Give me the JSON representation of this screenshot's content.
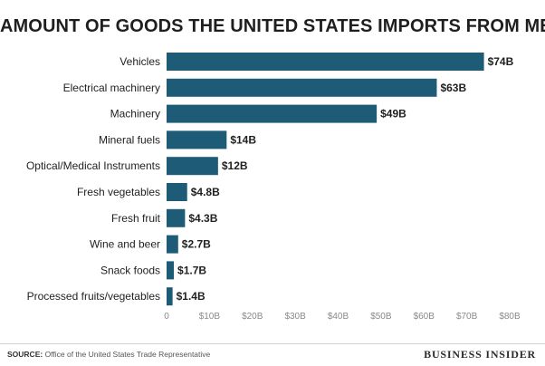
{
  "chart_data": {
    "type": "bar",
    "orientation": "horizontal",
    "title": "AMOUNT OF GOODS THE UNITED STATES IMPORTS FROM MEXICO",
    "xlabel": "",
    "ylabel": "",
    "xlim": [
      0,
      80
    ],
    "ticks": [
      0,
      10,
      20,
      30,
      40,
      50,
      60,
      70,
      80
    ],
    "tick_labels": [
      "0",
      "$10B",
      "$20B",
      "$30B",
      "$40B",
      "$50B",
      "$60B",
      "$70B",
      "$80B"
    ],
    "categories": [
      "Vehicles",
      "Electrical machinery",
      "Machinery",
      "Mineral fuels",
      "Optical/Medical Instruments",
      "Fresh vegetables",
      "Fresh fruit",
      "Wine and beer",
      "Snack foods",
      "Processed fruits/vegetables"
    ],
    "values": [
      74,
      63,
      49,
      14,
      12,
      4.8,
      4.3,
      2.7,
      1.7,
      1.4
    ],
    "value_labels": [
      "$74B",
      "$63B",
      "$49B",
      "$14B",
      "$12B",
      "$4.8B",
      "$4.3B",
      "$2.7B",
      "$1.7B",
      "$1.4B"
    ],
    "units": "billions of US dollars",
    "bar_color": "#1d5b77",
    "grid": false
  },
  "footer": {
    "source_key": "SOURCE:",
    "source_text": " Office of the United States Trade Representative",
    "brand": "BUSINESS INSIDER"
  }
}
